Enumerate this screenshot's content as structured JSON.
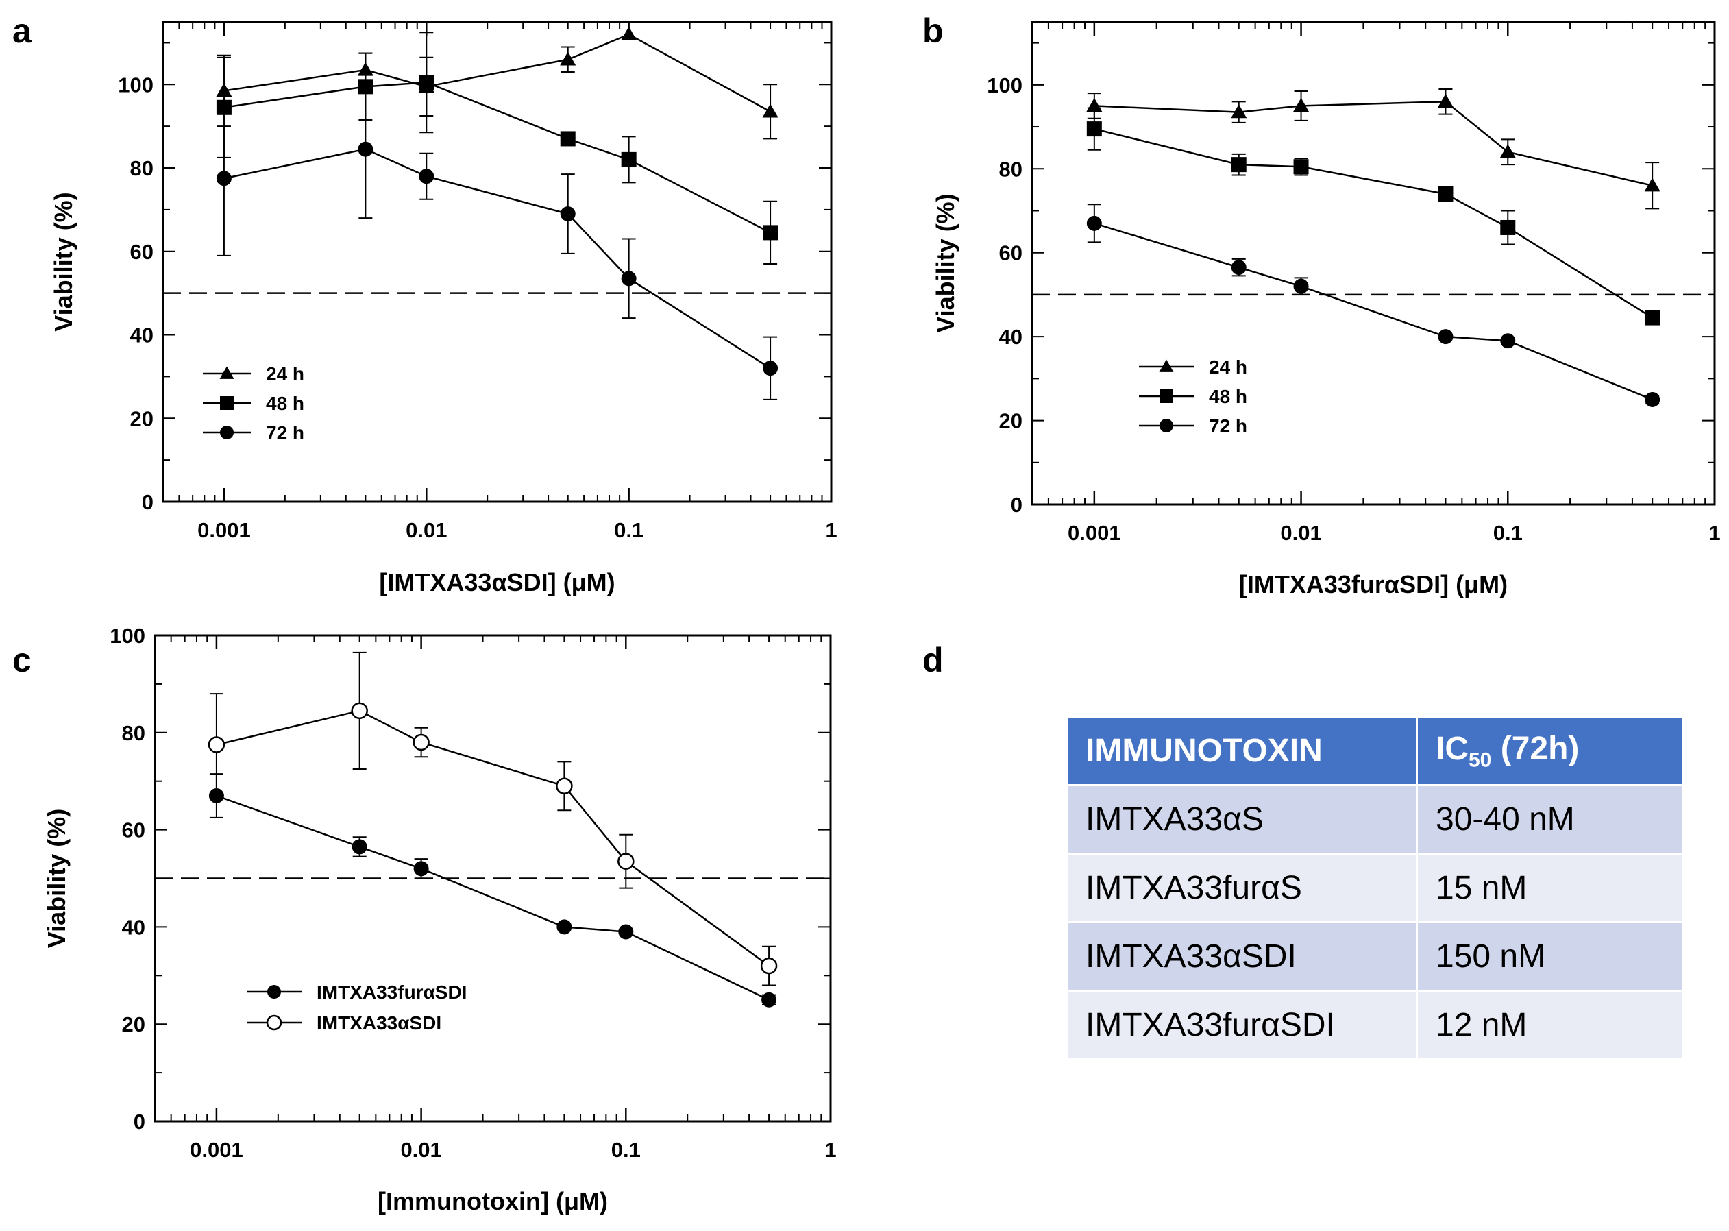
{
  "panel_letters": {
    "a": "a",
    "b": "b",
    "c": "c",
    "d": "d"
  },
  "table": {
    "headers": [
      "IMMUNOTOXIN",
      "IC",
      "50",
      " (72h)"
    ],
    "rows": [
      [
        "IMTXA33αS",
        "30-40 nM"
      ],
      [
        "IMTXA33furαS",
        "15 nM"
      ],
      [
        "IMTXA33αSDI",
        "150 nM"
      ],
      [
        "IMTXA33furαSDI",
        "12 nM"
      ]
    ]
  },
  "chart_data": [
    {
      "id": "a",
      "type": "line",
      "xlabel": "[IMTXA33αSDI] (μM)",
      "ylabel": "Viability (%)",
      "x_scale": "log",
      "xlim": [
        0.0005,
        1
      ],
      "ylim": [
        0,
        115
      ],
      "xticks": [
        0.001,
        0.01,
        0.1,
        1
      ],
      "xtick_labels": [
        "0.001",
        "0.01",
        "0.1",
        "1"
      ],
      "yticks": [
        0,
        20,
        40,
        60,
        80,
        100
      ],
      "ytick_labels": [
        "0",
        "20",
        "40",
        "60",
        "80",
        "100"
      ],
      "reference_line": 50,
      "legend_position": "bottom-left",
      "x": [
        0.001,
        0.005,
        0.01,
        0.05,
        0.1,
        0.5
      ],
      "series": [
        {
          "name": "24 h",
          "marker": "triangle",
          "values": [
            98.5,
            103.5,
            99.5,
            106,
            112,
            93.5
          ],
          "errors": [
            8.5,
            4,
            7,
            3,
            0,
            6.5
          ]
        },
        {
          "name": "48 h",
          "marker": "square",
          "values": [
            94.5,
            99.5,
            100.5,
            87,
            82,
            64.5
          ],
          "errors": [
            12,
            8,
            12,
            0,
            5.5,
            7.5
          ]
        },
        {
          "name": "72 h",
          "marker": "circle",
          "values": [
            77.5,
            84.5,
            78,
            69,
            53.5,
            32
          ],
          "errors": [
            18.5,
            16.5,
            5.5,
            9.5,
            9.5,
            7.5
          ]
        }
      ]
    },
    {
      "id": "b",
      "type": "line",
      "xlabel": "[IMTXA33furαSDI] (μM)",
      "ylabel": "Viability (%)",
      "x_scale": "log",
      "xlim": [
        0.0005,
        1
      ],
      "ylim": [
        0,
        115
      ],
      "xticks": [
        0.001,
        0.01,
        0.1,
        1
      ],
      "xtick_labels": [
        "0.001",
        "0.01",
        "0.1",
        "1"
      ],
      "yticks": [
        0,
        20,
        40,
        60,
        80,
        100
      ],
      "ytick_labels": [
        "0",
        "20",
        "40",
        "60",
        "80",
        "100"
      ],
      "reference_line": 50,
      "legend_position": "bottom-left",
      "x": [
        0.001,
        0.005,
        0.01,
        0.05,
        0.1,
        0.5
      ],
      "series": [
        {
          "name": "24 h",
          "marker": "triangle",
          "values": [
            95,
            93.5,
            95,
            96,
            84,
            76
          ],
          "errors": [
            3,
            2.5,
            3.5,
            3,
            3,
            5.5
          ]
        },
        {
          "name": "48 h",
          "marker": "square",
          "values": [
            89.5,
            81,
            80.5,
            74,
            66,
            44.5
          ],
          "errors": [
            5,
            2.5,
            2,
            0,
            4,
            0
          ]
        },
        {
          "name": "72 h",
          "marker": "circle",
          "values": [
            67,
            56.5,
            52,
            40,
            39,
            25
          ],
          "errors": [
            4.5,
            2,
            2,
            0,
            0,
            1
          ]
        }
      ]
    },
    {
      "id": "c",
      "type": "line",
      "xlabel": "[Immunotoxin] (μM)",
      "ylabel": "Viability (%)",
      "x_scale": "log",
      "xlim": [
        0.0005,
        1
      ],
      "ylim": [
        0,
        100
      ],
      "xticks": [
        0.001,
        0.01,
        0.1,
        1
      ],
      "xtick_labels": [
        "0.001",
        "0.01",
        "0.1",
        "1"
      ],
      "yticks": [
        0,
        20,
        40,
        60,
        80,
        100
      ],
      "ytick_labels": [
        "0",
        "20",
        "40",
        "60",
        "80",
        "100"
      ],
      "reference_line": 50,
      "legend_position": "bottom-left",
      "x": [
        0.001,
        0.005,
        0.01,
        0.05,
        0.1,
        0.5
      ],
      "series": [
        {
          "name": "IMTXA33furαSDI",
          "marker": "circle",
          "values": [
            67,
            56.5,
            52,
            40,
            39,
            25
          ],
          "errors": [
            4.5,
            2,
            2,
            0,
            0,
            1
          ]
        },
        {
          "name": "IMTXA33αSDI",
          "marker": "open-circle",
          "values": [
            77.5,
            84.5,
            78,
            69,
            53.5,
            32
          ],
          "errors": [
            10.5,
            12,
            3,
            5,
            5.5,
            4
          ]
        }
      ]
    }
  ]
}
